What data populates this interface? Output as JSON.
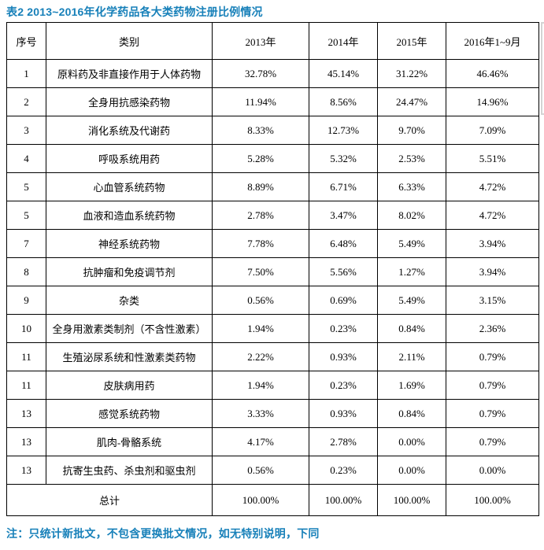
{
  "page": {
    "title": "表2 2013~2016年化学药品各大类药物注册比例情况",
    "note": "注：只统计新批文，不包含更换批文情况，如无特别说明，下同",
    "accent_color": "#1780b9"
  },
  "table": {
    "headers": [
      "序号",
      "类别",
      "2013年",
      "2014年",
      "2015年",
      "2016年1~9月"
    ],
    "rows": [
      [
        "1",
        "原料药及非直接作用于人体药物",
        "32.78%",
        "45.14%",
        "31.22%",
        "46.46%"
      ],
      [
        "2",
        "全身用抗感染药物",
        "11.94%",
        "8.56%",
        "24.47%",
        "14.96%"
      ],
      [
        "3",
        "消化系统及代谢药",
        "8.33%",
        "12.73%",
        "9.70%",
        "7.09%"
      ],
      [
        "4",
        "呼吸系统用药",
        "5.28%",
        "5.32%",
        "2.53%",
        "5.51%"
      ],
      [
        "5",
        "心血管系统药物",
        "8.89%",
        "6.71%",
        "6.33%",
        "4.72%"
      ],
      [
        "5",
        "血液和造血系统药物",
        "2.78%",
        "3.47%",
        "8.02%",
        "4.72%"
      ],
      [
        "7",
        "神经系统药物",
        "7.78%",
        "6.48%",
        "5.49%",
        "3.94%"
      ],
      [
        "8",
        "抗肿瘤和免疫调节剂",
        "7.50%",
        "5.56%",
        "1.27%",
        "3.94%"
      ],
      [
        "9",
        "杂类",
        "0.56%",
        "0.69%",
        "5.49%",
        "3.15%"
      ],
      [
        "10",
        "全身用激素类制剂（不含性激素）",
        "1.94%",
        "0.23%",
        "0.84%",
        "2.36%"
      ],
      [
        "11",
        "生殖泌尿系统和性激素类药物",
        "2.22%",
        "0.93%",
        "2.11%",
        "0.79%"
      ],
      [
        "11",
        "皮肤病用药",
        "1.94%",
        "0.23%",
        "1.69%",
        "0.79%"
      ],
      [
        "13",
        "感觉系统药物",
        "3.33%",
        "0.93%",
        "0.84%",
        "0.79%"
      ],
      [
        "13",
        "肌肉-骨骼系统",
        "4.17%",
        "2.78%",
        "0.00%",
        "0.79%"
      ],
      [
        "13",
        "抗寄生虫药、杀虫剂和驱虫剂",
        "0.56%",
        "0.23%",
        "0.00%",
        "0.00%"
      ]
    ],
    "total_row": {
      "label": "总计",
      "values": [
        "100.00%",
        "100.00%",
        "100.00%",
        "100.00%"
      ]
    }
  }
}
